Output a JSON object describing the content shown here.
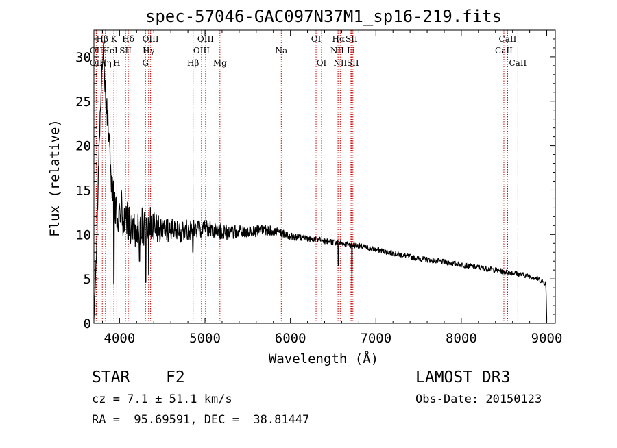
{
  "chart_data": {
    "type": "line",
    "title": "spec-57046-GAC097N37M1_sp16-219.fits",
    "xlabel": "Wavelength (Å)",
    "ylabel": "Flux (relative)",
    "xlim": [
      3700,
      9100
    ],
    "ylim": [
      0,
      33
    ],
    "xticks": [
      4000,
      5000,
      6000,
      7000,
      8000,
      9000
    ],
    "xtick_labels": [
      "4000",
      "5000",
      "6000",
      "7000",
      "8000",
      "9000"
    ],
    "yticks": [
      0,
      5,
      10,
      15,
      20,
      25,
      30
    ],
    "ytick_labels": [
      "0",
      "5",
      "10",
      "15",
      "20",
      "25",
      "30"
    ],
    "line_color": "#000000",
    "marker_color": "#cc0000",
    "continuum_anchors": {
      "x": [
        3700,
        3730,
        3760,
        3790,
        3810,
        3830,
        3850,
        3870,
        3890,
        3910,
        3930,
        3950,
        3970,
        3990,
        4010,
        4050,
        4100,
        4150,
        4200,
        4300,
        4400,
        4500,
        4700,
        4900,
        5000,
        5100,
        5300,
        5500,
        5700,
        5800,
        6000,
        6200,
        6400,
        6600,
        6800,
        7000,
        7200,
        7500,
        7800,
        8000,
        8200,
        8400,
        8500,
        8600,
        8800,
        8900,
        8990,
        9000
      ],
      "y": [
        0.5,
        8,
        20,
        28,
        31,
        27,
        24,
        22,
        18,
        15,
        14,
        13,
        12,
        12.5,
        13,
        12,
        11.5,
        11,
        11,
        11,
        10.8,
        10.5,
        10.3,
        10.6,
        10.8,
        10.5,
        10.2,
        10.3,
        10.5,
        10.4,
        9.8,
        9.5,
        9.3,
        9.0,
        8.7,
        8.3,
        7.9,
        7.3,
        6.9,
        6.6,
        6.3,
        6.0,
        5.8,
        5.7,
        5.3,
        5.0,
        4.5,
        0.5
      ]
    },
    "noise_level": {
      "x": [
        3700,
        4000,
        4400,
        4500,
        5000,
        6000,
        7000,
        9000
      ],
      "y": [
        0.6,
        2.5,
        2.2,
        1.5,
        1.0,
        0.4,
        0.3,
        0.3
      ]
    },
    "absorption_dips": [
      {
        "x": 3935,
        "y": 4.5
      },
      {
        "x": 4305,
        "y": 4.6
      },
      {
        "x": 4340,
        "y": 5.5
      },
      {
        "x": 4235,
        "y": 7.0
      },
      {
        "x": 4858,
        "y": 8.0
      },
      {
        "x": 6563,
        "y": 6.5
      },
      {
        "x": 6720,
        "y": 4.5
      }
    ],
    "line_markers": [
      {
        "label": "Hβ",
        "x": 3798,
        "tier": 0
      },
      {
        "label": "K",
        "x": 3934,
        "tier": 0
      },
      {
        "label": "Hδ",
        "x": 4102,
        "tier": 0
      },
      {
        "label": "OIII",
        "x": 4363,
        "tier": 0
      },
      {
        "label": "OIII",
        "x": 5007,
        "tier": 0
      },
      {
        "label": "OI",
        "x": 6300,
        "tier": 0
      },
      {
        "label": "Hα",
        "x": 6563,
        "tier": 0
      },
      {
        "label": "SII",
        "x": 6716,
        "tier": 0
      },
      {
        "label": "CaII",
        "x": 8542,
        "tier": 0
      },
      {
        "label": "OII",
        "x": 3727,
        "tier": 1
      },
      {
        "label": "HeI",
        "x": 3889,
        "tier": 1
      },
      {
        "label": "SII",
        "x": 4070,
        "tier": 1
      },
      {
        "label": "Hγ",
        "x": 4340,
        "tier": 1
      },
      {
        "label": "OIII",
        "x": 4959,
        "tier": 1
      },
      {
        "label": "Na",
        "x": 5893,
        "tier": 1
      },
      {
        "label": "NII",
        "x": 6548,
        "tier": 1
      },
      {
        "label": "Li",
        "x": 6708,
        "tier": 1
      },
      {
        "label": "CaII",
        "x": 8498,
        "tier": 1
      },
      {
        "label": "OII",
        "x": 3727,
        "tier": 2
      },
      {
        "label": "Hη",
        "x": 3835,
        "tier": 2
      },
      {
        "label": "H",
        "x": 3968,
        "tier": 2
      },
      {
        "label": "G",
        "x": 4304,
        "tier": 2
      },
      {
        "label": "Hβ",
        "x": 4861,
        "tier": 2
      },
      {
        "label": "Mg",
        "x": 5175,
        "tier": 2
      },
      {
        "label": "OI",
        "x": 6364,
        "tier": 2
      },
      {
        "label": "NII",
        "x": 6583,
        "tier": 2
      },
      {
        "label": "SII",
        "x": 6731,
        "tier": 2
      },
      {
        "label": "CaII",
        "x": 8662,
        "tier": 2
      }
    ]
  },
  "info": {
    "class_label": "STAR",
    "subclass": "F2",
    "survey": "LAMOST DR3",
    "cz": "cz = 7.1 ± 51.1 km/s",
    "obs_date": "Obs-Date: 20150123",
    "coords": "RA =  95.69591, DEC =  38.81447"
  }
}
